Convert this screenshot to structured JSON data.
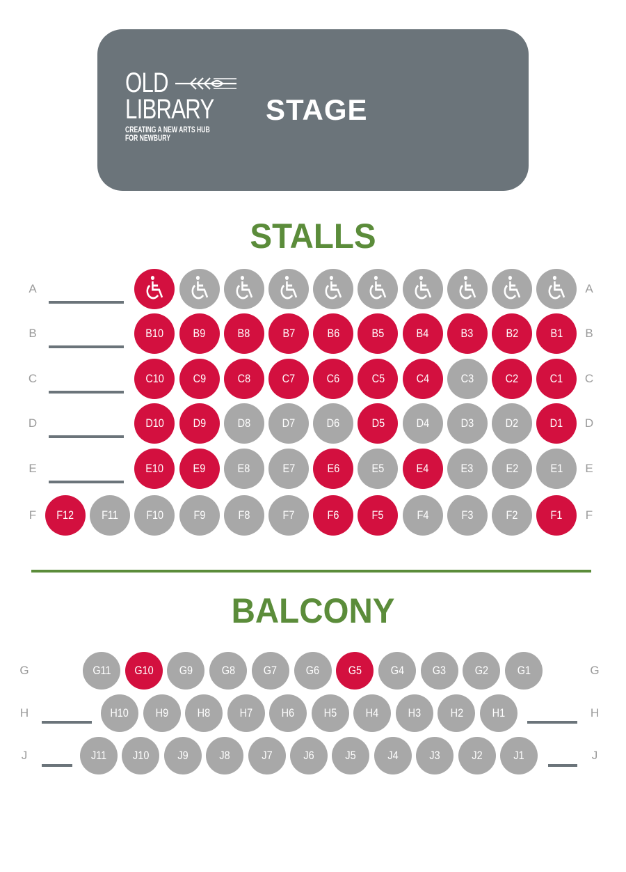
{
  "colors": {
    "red": "#d3103f",
    "grey": "#a8a8a8",
    "green": "#5b8c3a",
    "stage": "#6b747a"
  },
  "stage": {
    "logo": {
      "line1": "OLD",
      "line2": "LIBRARY",
      "tagline1": "CREATING A NEW ARTS HUB",
      "tagline2": "FOR NEWBURY"
    },
    "label": "STAGE"
  },
  "stalls": {
    "title": "STALLS",
    "rows": [
      {
        "row": "A",
        "seats": [
          {
            "label": "",
            "icon": "wheelchair-icon",
            "color": "red"
          },
          {
            "label": "",
            "icon": "wheelchair-icon",
            "color": "grey"
          },
          {
            "label": "",
            "icon": "wheelchair-icon",
            "color": "grey"
          },
          {
            "label": "",
            "icon": "wheelchair-icon",
            "color": "grey"
          },
          {
            "label": "",
            "icon": "wheelchair-icon",
            "color": "grey"
          },
          {
            "label": "",
            "icon": "wheelchair-icon",
            "color": "grey"
          },
          {
            "label": "",
            "icon": "wheelchair-icon",
            "color": "grey"
          },
          {
            "label": "",
            "icon": "wheelchair-icon",
            "color": "grey"
          },
          {
            "label": "",
            "icon": "wheelchair-icon",
            "color": "grey"
          },
          {
            "label": "",
            "icon": "wheelchair-icon",
            "color": "grey"
          }
        ]
      },
      {
        "row": "B",
        "seats": [
          {
            "label": "B10",
            "color": "red"
          },
          {
            "label": "B9",
            "color": "red"
          },
          {
            "label": "B8",
            "color": "red"
          },
          {
            "label": "B7",
            "color": "red"
          },
          {
            "label": "B6",
            "color": "red"
          },
          {
            "label": "B5",
            "color": "red"
          },
          {
            "label": "B4",
            "color": "red"
          },
          {
            "label": "B3",
            "color": "red"
          },
          {
            "label": "B2",
            "color": "red"
          },
          {
            "label": "B1",
            "color": "red"
          }
        ]
      },
      {
        "row": "C",
        "seats": [
          {
            "label": "C10",
            "color": "red"
          },
          {
            "label": "C9",
            "color": "red"
          },
          {
            "label": "C8",
            "color": "red"
          },
          {
            "label": "C7",
            "color": "red"
          },
          {
            "label": "C6",
            "color": "red"
          },
          {
            "label": "C5",
            "color": "red"
          },
          {
            "label": "C4",
            "color": "red"
          },
          {
            "label": "C3",
            "color": "grey"
          },
          {
            "label": "C2",
            "color": "red"
          },
          {
            "label": "C1",
            "color": "red"
          }
        ]
      },
      {
        "row": "D",
        "seats": [
          {
            "label": "D10",
            "color": "red"
          },
          {
            "label": "D9",
            "color": "red"
          },
          {
            "label": "D8",
            "color": "grey"
          },
          {
            "label": "D7",
            "color": "grey"
          },
          {
            "label": "D6",
            "color": "grey"
          },
          {
            "label": "D5",
            "color": "red"
          },
          {
            "label": "D4",
            "color": "grey"
          },
          {
            "label": "D3",
            "color": "grey"
          },
          {
            "label": "D2",
            "color": "grey"
          },
          {
            "label": "D1",
            "color": "red"
          }
        ]
      },
      {
        "row": "E",
        "seats": [
          {
            "label": "E10",
            "color": "red"
          },
          {
            "label": "E9",
            "color": "red"
          },
          {
            "label": "E8",
            "color": "grey"
          },
          {
            "label": "E7",
            "color": "grey"
          },
          {
            "label": "E6",
            "color": "red"
          },
          {
            "label": "E5",
            "color": "grey"
          },
          {
            "label": "E4",
            "color": "red"
          },
          {
            "label": "E3",
            "color": "grey"
          },
          {
            "label": "E2",
            "color": "grey"
          },
          {
            "label": "E1",
            "color": "grey"
          }
        ]
      },
      {
        "row": "F",
        "seats": [
          {
            "label": "F12",
            "color": "red"
          },
          {
            "label": "F11",
            "color": "grey"
          },
          {
            "label": "F10",
            "color": "grey"
          },
          {
            "label": "F9",
            "color": "grey"
          },
          {
            "label": "F8",
            "color": "grey"
          },
          {
            "label": "F7",
            "color": "grey"
          },
          {
            "label": "F6",
            "color": "red"
          },
          {
            "label": "F5",
            "color": "red"
          },
          {
            "label": "F4",
            "color": "grey"
          },
          {
            "label": "F3",
            "color": "grey"
          },
          {
            "label": "F2",
            "color": "grey"
          },
          {
            "label": "F1",
            "color": "red"
          }
        ]
      }
    ]
  },
  "balcony": {
    "title": "BALCONY",
    "rows": [
      {
        "row": "G",
        "seats": [
          {
            "label": "G11",
            "color": "grey"
          },
          {
            "label": "G10",
            "color": "red"
          },
          {
            "label": "G9",
            "color": "grey"
          },
          {
            "label": "G8",
            "color": "grey"
          },
          {
            "label": "G7",
            "color": "grey"
          },
          {
            "label": "G6",
            "color": "grey"
          },
          {
            "label": "G5",
            "color": "red"
          },
          {
            "label": "G4",
            "color": "grey"
          },
          {
            "label": "G3",
            "color": "grey"
          },
          {
            "label": "G2",
            "color": "grey"
          },
          {
            "label": "G1",
            "color": "grey"
          }
        ]
      },
      {
        "row": "H",
        "seats": [
          {
            "label": "H10",
            "color": "grey"
          },
          {
            "label": "H9",
            "color": "grey"
          },
          {
            "label": "H8",
            "color": "grey"
          },
          {
            "label": "H7",
            "color": "grey"
          },
          {
            "label": "H6",
            "color": "grey"
          },
          {
            "label": "H5",
            "color": "grey"
          },
          {
            "label": "H4",
            "color": "grey"
          },
          {
            "label": "H3",
            "color": "grey"
          },
          {
            "label": "H2",
            "color": "grey"
          },
          {
            "label": "H1",
            "color": "grey"
          }
        ]
      },
      {
        "row": "J",
        "seats": [
          {
            "label": "J11",
            "color": "grey"
          },
          {
            "label": "J10",
            "color": "grey"
          },
          {
            "label": "J9",
            "color": "grey"
          },
          {
            "label": "J8",
            "color": "grey"
          },
          {
            "label": "J7",
            "color": "grey"
          },
          {
            "label": "J6",
            "color": "grey"
          },
          {
            "label": "J5",
            "color": "grey"
          },
          {
            "label": "J4",
            "color": "grey"
          },
          {
            "label": "J3",
            "color": "grey"
          },
          {
            "label": "J2",
            "color": "grey"
          },
          {
            "label": "J1",
            "color": "grey"
          }
        ]
      }
    ]
  }
}
